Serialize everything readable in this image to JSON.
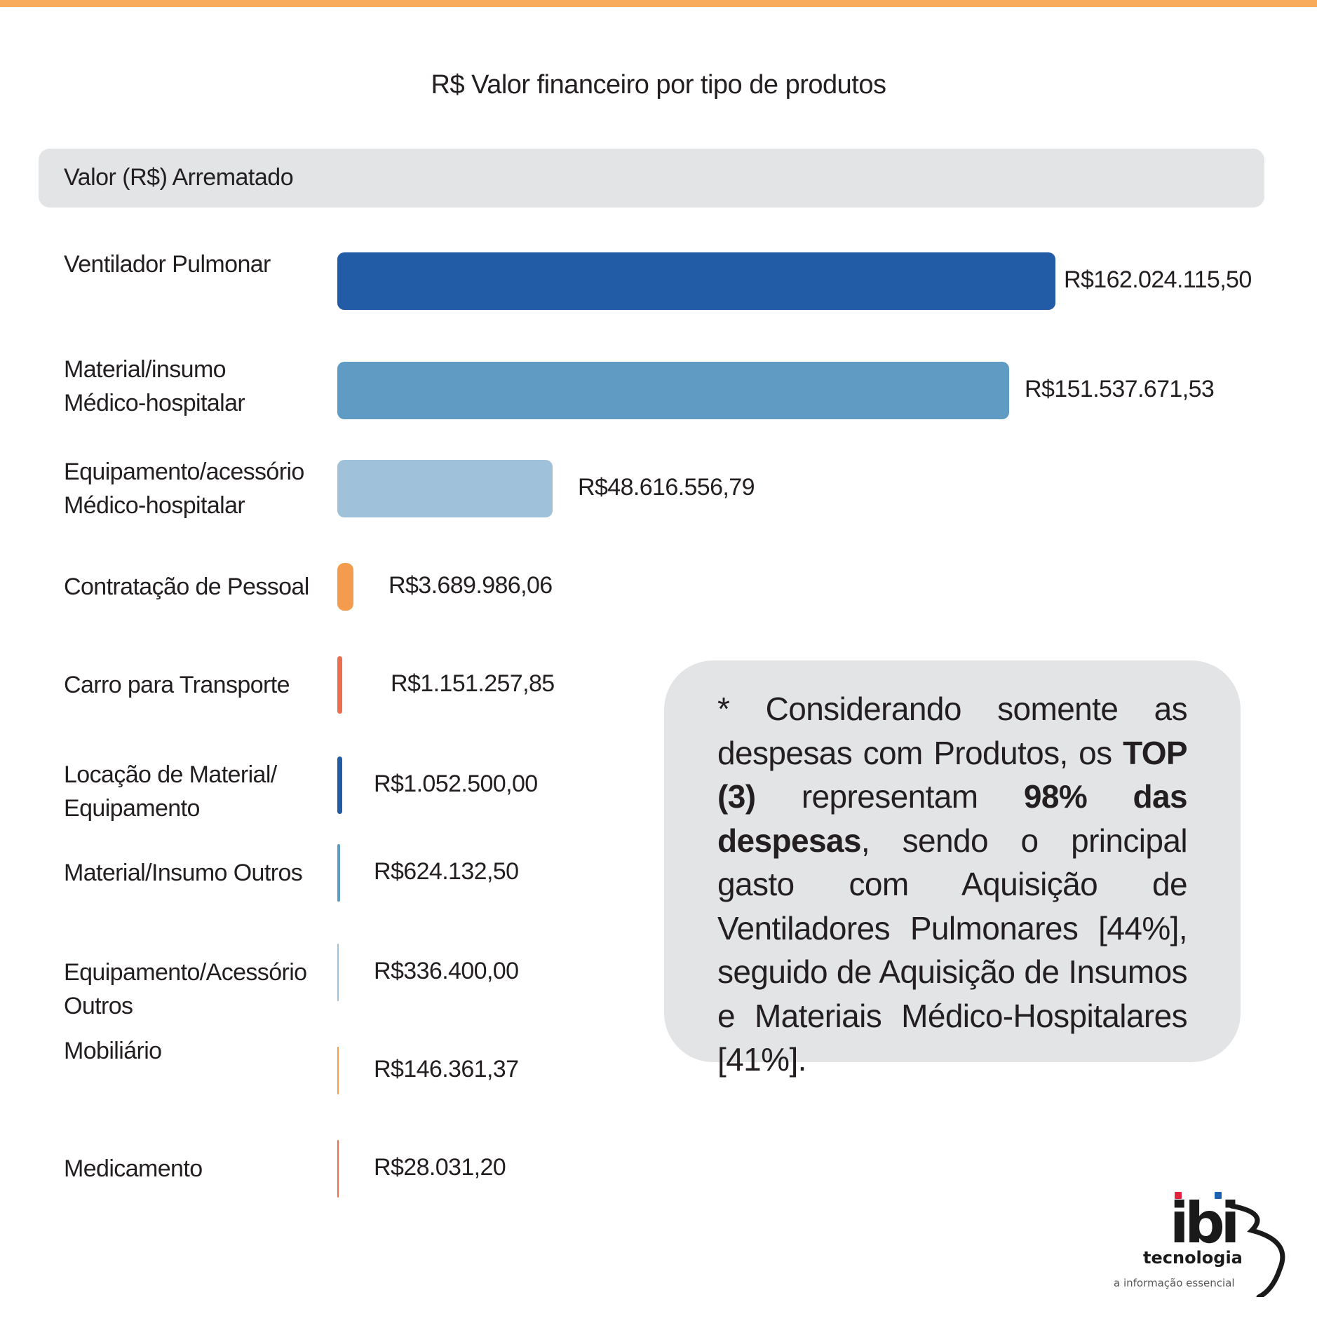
{
  "chart_data": {
    "type": "bar",
    "orientation": "horizontal",
    "title": "R$ Valor financeiro por tipo de produtos",
    "series_header": "Valor (R$) Arrematado",
    "categories": [
      "Ventilador Pulmonar",
      "Material/insumo\nMédico-hospitalar",
      "Equipamento/acessório\nMédico-hospitalar",
      "Contratação de Pessoal",
      "Carro para Transporte",
      "Locação de Material/\nEquipamento",
      "Material/Insumo Outros",
      "Equipamento/Acessório\nOutros",
      "Mobiliário",
      "Medicamento"
    ],
    "values": [
      162024115.5,
      151537671.53,
      48616556.79,
      3689986.06,
      1151257.85,
      1052500.0,
      624132.5,
      336400.0,
      146361.37,
      28031.2
    ],
    "value_labels": [
      "R$162.024.115,50",
      "R$151.537.671,53",
      "R$48.616.556,79",
      "R$3.689.986,06",
      "R$1.151.257,85",
      "R$1.052.500,00",
      "R$624.132,50",
      "R$336.400,00",
      "R$146.361,37",
      "R$28.031,20"
    ],
    "colors": [
      "#225ca7",
      "#5f9bc2",
      "#9fc2da",
      "#f39c4d",
      "#ec6e4c",
      "#225ca7",
      "#5f9bc2",
      "#9fc2da",
      "#f39c4d",
      "#ec6e4c"
    ],
    "xlim": [
      0,
      162024115.5
    ]
  },
  "note": {
    "text_1": "* Considerando somente as despesas com Produtos, os ",
    "bold_1": "TOP (3)",
    "text_2": " representam ",
    "bold_2": "98% das despesas",
    "text_3": ", sendo o principal gasto com Aquisição de Ventiladores Pulmonares [44%], seguido de Aquisição de Insumos e Materiais Médico-Hospitalares [41%]."
  },
  "logo": {
    "wordmark": "ibi",
    "name": "tecnologia",
    "tagline": "a informação essencial",
    "colors": {
      "dot_red": "#e2233e",
      "dot_blue": "#1d62b0",
      "ink": "#1a1a1a"
    }
  },
  "accent_color": "#f7ab5b"
}
